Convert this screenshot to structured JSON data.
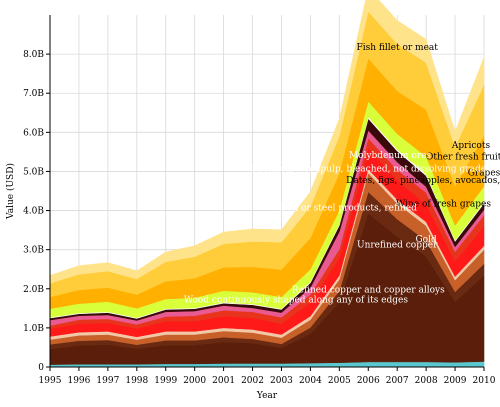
{
  "chart_data": {
    "type": "area",
    "stacked": true,
    "xlabel": "Year",
    "ylabel": "Value (USD)",
    "x": [
      1995,
      1996,
      1997,
      1998,
      1999,
      2000,
      2001,
      2002,
      2003,
      2004,
      2005,
      2006,
      2007,
      2008,
      2009,
      2010
    ],
    "xticks": [
      "1995",
      "1996",
      "1997",
      "1998",
      "1999",
      "2000",
      "2001",
      "2002",
      "2003",
      "2004",
      "2005",
      "2006",
      "2007",
      "2008",
      "2009",
      "2010"
    ],
    "ylim": [
      0,
      9000000000
    ],
    "yticks": [
      {
        "value": 0,
        "label": "0"
      },
      {
        "value": 1000000000,
        "label": "1.0B"
      },
      {
        "value": 2000000000,
        "label": "2.0B"
      },
      {
        "value": 3000000000,
        "label": "3.0B"
      },
      {
        "value": 4000000000,
        "label": "4.0B"
      },
      {
        "value": 5000000000,
        "label": "5.0B"
      },
      {
        "value": 6000000000,
        "label": "6.0B"
      },
      {
        "value": 7000000000,
        "label": "7.0B"
      },
      {
        "value": 8000000000,
        "label": "8.0B"
      }
    ],
    "grid": true,
    "legend": "none",
    "series": [
      {
        "name": "",
        "color": "#5bc8d0",
        "values": [
          0.06,
          0.07,
          0.07,
          0.07,
          0.08,
          0.08,
          0.09,
          0.09,
          0.09,
          0.1,
          0.11,
          0.13,
          0.13,
          0.13,
          0.12,
          0.14
        ]
      },
      {
        "name": "Unrefined copper",
        "color": "#5a1e0a",
        "values": [
          0.4,
          0.48,
          0.5,
          0.4,
          0.48,
          0.48,
          0.55,
          0.52,
          0.4,
          0.75,
          1.55,
          3.8,
          3.2,
          2.7,
          1.55,
          2.2
        ]
      },
      {
        "name": "Refined copper and copper alloys",
        "color": "#6a2a12",
        "values": [
          0.12,
          0.12,
          0.12,
          0.1,
          0.12,
          0.12,
          0.12,
          0.11,
          0.1,
          0.16,
          0.28,
          0.55,
          0.45,
          0.4,
          0.25,
          0.3
        ]
      },
      {
        "name": "Gold",
        "color": "#c8602a",
        "values": [
          0.12,
          0.14,
          0.14,
          0.13,
          0.15,
          0.15,
          0.16,
          0.16,
          0.16,
          0.2,
          0.3,
          0.48,
          0.4,
          0.38,
          0.3,
          0.36
        ]
      },
      {
        "name": "Wood continuously shaped along any of its edges",
        "color": "#f2c9a8",
        "values": [
          0.08,
          0.08,
          0.08,
          0.07,
          0.08,
          0.08,
          0.08,
          0.08,
          0.08,
          0.09,
          0.1,
          0.1,
          0.1,
          0.1,
          0.09,
          0.1
        ]
      },
      {
        "name": "",
        "color": "#ff1a1a",
        "values": [
          0.2,
          0.22,
          0.22,
          0.22,
          0.26,
          0.26,
          0.3,
          0.3,
          0.28,
          0.35,
          0.45,
          0.55,
          0.5,
          0.45,
          0.4,
          0.5
        ]
      },
      {
        "name": "Wine of fresh grapes",
        "color": "#e8341c",
        "values": [
          0.08,
          0.1,
          0.1,
          0.1,
          0.12,
          0.14,
          0.15,
          0.15,
          0.16,
          0.2,
          0.22,
          0.24,
          0.26,
          0.3,
          0.24,
          0.28
        ]
      },
      {
        "name": "Molybdenum ores",
        "color": "#e85a90",
        "values": [
          0.14,
          0.1,
          0.1,
          0.1,
          0.12,
          0.12,
          0.12,
          0.1,
          0.12,
          0.18,
          0.45,
          0.2,
          0.2,
          0.15,
          0.12,
          0.14
        ]
      },
      {
        "name": "",
        "color": "#3a0a0a",
        "values": [
          0.05,
          0.05,
          0.06,
          0.05,
          0.06,
          0.06,
          0.06,
          0.08,
          0.08,
          0.12,
          0.16,
          0.3,
          0.28,
          0.28,
          0.14,
          0.16
        ]
      },
      {
        "name": "Chemical woodpulp",
        "color": "#ffffff",
        "values": [
          0.02,
          0.02,
          0.02,
          0.02,
          0.02,
          0.02,
          0.02,
          0.02,
          0.02,
          0.03,
          0.03,
          0.04,
          0.04,
          0.04,
          0.03,
          0.04
        ]
      },
      {
        "name": "",
        "color": "#d8ff3a",
        "values": [
          0.22,
          0.24,
          0.26,
          0.24,
          0.25,
          0.26,
          0.3,
          0.3,
          0.3,
          0.32,
          0.35,
          0.4,
          0.4,
          0.45,
          0.38,
          0.4
        ]
      },
      {
        "name": "",
        "color": "#ffb000",
        "values": [
          0.3,
          0.35,
          0.36,
          0.35,
          0.45,
          0.5,
          0.6,
          0.65,
          0.7,
          0.8,
          0.95,
          1.1,
          1.1,
          1.2,
          1.0,
          1.3
        ]
      },
      {
        "name": "Fish fillet or meat",
        "color": "#ffcc3a",
        "values": [
          0.35,
          0.4,
          0.42,
          0.4,
          0.5,
          0.55,
          0.6,
          0.65,
          0.7,
          0.8,
          0.95,
          1.2,
          1.2,
          1.2,
          1.0,
          1.3
        ]
      },
      {
        "name": "",
        "color": "#ffe38a",
        "values": [
          0.2,
          0.22,
          0.22,
          0.21,
          0.25,
          0.28,
          0.3,
          0.32,
          0.32,
          0.38,
          0.45,
          0.6,
          0.6,
          0.6,
          0.4,
          0.7
        ]
      }
    ],
    "annotations": [
      {
        "text": "Fish fillet or meat",
        "year": 2007.0,
        "value": 8.1,
        "color": "#000000"
      },
      {
        "text": "Apricots",
        "year": 2009.55,
        "value": 5.6,
        "color": "#000000"
      },
      {
        "text": "Other fresh fruit",
        "year": 2009.3,
        "value": 5.3,
        "color": "#000000"
      },
      {
        "text": "Grapes",
        "year": 2010.0,
        "value": 4.9,
        "color": "#000000"
      },
      {
        "text": "Molybdenum ores",
        "year": 2006.75,
        "value": 5.35,
        "color": "#ffffff"
      },
      {
        "text": "Chemical woodpulp, bleached, not dissolving grade",
        "year": 2006.0,
        "value": 5.0,
        "color": "#ffffff"
      },
      {
        "text": "Dates, figs, pineapples, avocados, guavas",
        "year": 2008.5,
        "value": 4.7,
        "color": "#000000"
      },
      {
        "text": "Wine of fresh grapes",
        "year": 2008.6,
        "value": 4.1,
        "color": "#000000"
      },
      {
        "text": "Iron or steel products, refined",
        "year": 2005.3,
        "value": 4.0,
        "color": "#ffffff"
      },
      {
        "text": "Gold",
        "year": 2008.0,
        "value": 3.2,
        "color": "#ffffff"
      },
      {
        "text": "Unrefined copper",
        "year": 2007.0,
        "value": 3.05,
        "color": "#ffffff"
      },
      {
        "text": "Refined copper and copper alloys",
        "year": 2006.0,
        "value": 1.9,
        "color": "#ffffff"
      },
      {
        "text": "Wood continuously shaped along any of its edges",
        "year": 2003.5,
        "value": 1.65,
        "color": "#ffffff"
      }
    ]
  }
}
